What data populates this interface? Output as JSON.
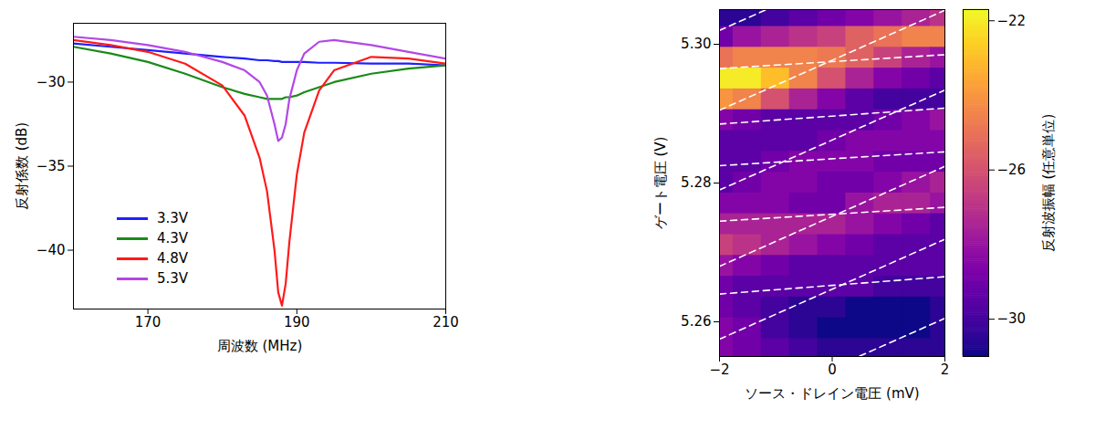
{
  "chart_data": [
    {
      "type": "line",
      "xlabel": "周波数 (MHz)",
      "ylabel": "反射係数 (dB)",
      "x": [
        160,
        165,
        170,
        175,
        180,
        183,
        185,
        186,
        187,
        187.5,
        188,
        188.5,
        189,
        190,
        191,
        193,
        195,
        200,
        205,
        210
      ],
      "xlim": [
        160,
        210
      ],
      "xticks": [
        170,
        190,
        210
      ],
      "ylim": [
        -43.5,
        -26.5
      ],
      "yticks": [
        -40,
        -35,
        -30
      ],
      "grid": false,
      "legend": "lower left",
      "series": [
        {
          "name": "3.3V",
          "color": "#1f1fff",
          "values": [
            -27.7,
            -27.9,
            -28.1,
            -28.3,
            -28.5,
            -28.6,
            -28.7,
            -28.7,
            -28.75,
            -28.75,
            -28.8,
            -28.8,
            -28.8,
            -28.8,
            -28.8,
            -28.85,
            -28.85,
            -28.9,
            -28.9,
            -29.0
          ]
        },
        {
          "name": "4.3V",
          "color": "#1a8a1a",
          "values": [
            -27.9,
            -28.3,
            -28.8,
            -29.5,
            -30.3,
            -30.7,
            -30.9,
            -31.0,
            -31.0,
            -31.0,
            -31.0,
            -30.9,
            -30.9,
            -30.8,
            -30.6,
            -30.3,
            -30.0,
            -29.5,
            -29.2,
            -29.0
          ]
        },
        {
          "name": "4.8V",
          "color": "#ff1a1a",
          "values": [
            -27.5,
            -27.8,
            -28.2,
            -28.9,
            -30.2,
            -32.0,
            -34.5,
            -36.5,
            -40.0,
            -42.5,
            -43.3,
            -42.0,
            -39.5,
            -35.5,
            -33.0,
            -30.5,
            -29.3,
            -28.5,
            -28.6,
            -28.9
          ]
        },
        {
          "name": "5.3V",
          "color": "#b347e6",
          "values": [
            -27.3,
            -27.5,
            -27.8,
            -28.2,
            -28.8,
            -29.3,
            -30.0,
            -30.8,
            -32.5,
            -33.5,
            -33.3,
            -32.5,
            -31.0,
            -29.3,
            -28.3,
            -27.6,
            -27.5,
            -27.8,
            -28.2,
            -28.6
          ]
        }
      ]
    },
    {
      "type": "heatmap",
      "xlabel": "ソース・ドレイン電圧 (mV)",
      "ylabel": "ゲート電圧 (V)",
      "x": [
        -2,
        -1.5,
        -1,
        -0.5,
        0,
        0.5,
        1,
        1.5,
        2
      ],
      "y": [
        5.304,
        5.301,
        5.298,
        5.295,
        5.292,
        5.289,
        5.286,
        5.283,
        5.28,
        5.277,
        5.274,
        5.271,
        5.268,
        5.265,
        5.262,
        5.259,
        5.256
      ],
      "values": [
        [
          -30.5,
          -30.5,
          -30,
          -29.5,
          -29,
          -28.5,
          -28,
          -27.5,
          -27
        ],
        [
          -29,
          -28,
          -27.5,
          -27,
          -26.5,
          -25.5,
          -25,
          -24.5,
          -24.5
        ],
        [
          -25,
          -24.5,
          -24.5,
          -24.5,
          -24.8,
          -25.5,
          -26.5,
          -27.5,
          -28
        ],
        [
          -22,
          -22,
          -23,
          -24.5,
          -26,
          -27.5,
          -28.5,
          -29,
          -29.5
        ],
        [
          -24,
          -24.5,
          -26,
          -27.5,
          -28.5,
          -29.5,
          -30,
          -30,
          -30
        ],
        [
          -28.5,
          -29,
          -29.5,
          -29.5,
          -29.5,
          -29.5,
          -29,
          -28.5,
          -28
        ],
        [
          -29.5,
          -29.5,
          -29.5,
          -29.5,
          -29,
          -28.5,
          -28.5,
          -28.5,
          -28.5
        ],
        [
          -29.5,
          -29.5,
          -29,
          -28.5,
          -28.5,
          -28.5,
          -29,
          -29,
          -29
        ],
        [
          -29.5,
          -29,
          -28.5,
          -28.5,
          -29,
          -29,
          -28.5,
          -28,
          -27.5
        ],
        [
          -28.5,
          -28.5,
          -28.5,
          -29,
          -29,
          -28,
          -27.5,
          -27.5,
          -28
        ],
        [
          -27.5,
          -27.5,
          -27.5,
          -27.5,
          -27.5,
          -28,
          -28.5,
          -29,
          -29.5
        ],
        [
          -26.5,
          -27,
          -27.5,
          -28,
          -28.5,
          -29,
          -29.5,
          -29.5,
          -29.5
        ],
        [
          -28,
          -28.5,
          -29,
          -29.5,
          -29.5,
          -29.5,
          -29.5,
          -29.5,
          -29.5
        ],
        [
          -29,
          -29.5,
          -29.5,
          -29.5,
          -29.5,
          -29.5,
          -30,
          -30,
          -30
        ],
        [
          -29,
          -29.5,
          -30,
          -30.5,
          -30.5,
          -31,
          -31,
          -31,
          -30.5
        ],
        [
          -28.5,
          -29,
          -30,
          -30.5,
          -31,
          -31,
          -31,
          -31,
          -30.5
        ],
        [
          -28.5,
          -29,
          -29.5,
          -30,
          -30.5,
          -30.5,
          -30.5,
          -30.5,
          -30.5
        ]
      ],
      "xlim": [
        -2,
        2
      ],
      "xticks": [
        -2,
        0,
        2
      ],
      "ylim": [
        5.255,
        5.305
      ],
      "yticks": [
        5.26,
        5.28,
        {
          "value": 5.3,
          "label": "5.30"
        }
      ],
      "color": "plasma",
      "zlabel": "反射波振幅 (任意単位)",
      "zlim": [
        -31,
        -21.7
      ],
      "zticks": [
        -30,
        -26,
        -22
      ],
      "lines": {
        "color": "#ffffff",
        "line_style": "dashed",
        "segments": [
          {
            "x": [
              -2,
              2
            ],
            "y": [
              5.2965,
              5.2985
            ]
          },
          {
            "x": [
              -2,
              2
            ],
            "y": [
              5.2885,
              5.2908
            ]
          },
          {
            "x": [
              -2,
              2
            ],
            "y": [
              5.2825,
              5.2845
            ]
          },
          {
            "x": [
              -2,
              2
            ],
            "y": [
              5.2745,
              5.2765
            ]
          },
          {
            "x": [
              -2,
              2
            ],
            "y": [
              5.264,
              5.2665
            ]
          },
          {
            "x": [
              -2,
              2
            ],
            "y": [
              5.302,
              5.3164
            ]
          },
          {
            "x": [
              -2,
              2
            ],
            "y": [
              5.2905,
              5.3049
            ]
          },
          {
            "x": [
              -2,
              2
            ],
            "y": [
              5.279,
              5.2934
            ]
          },
          {
            "x": [
              -2,
              2
            ],
            "y": [
              5.268,
              5.2824
            ]
          },
          {
            "x": [
              -2,
              2
            ],
            "y": [
              5.2575,
              5.2719
            ]
          },
          {
            "x": [
              -2,
              2
            ],
            "y": [
              5.2461,
              5.2605
            ]
          }
        ]
      }
    }
  ]
}
